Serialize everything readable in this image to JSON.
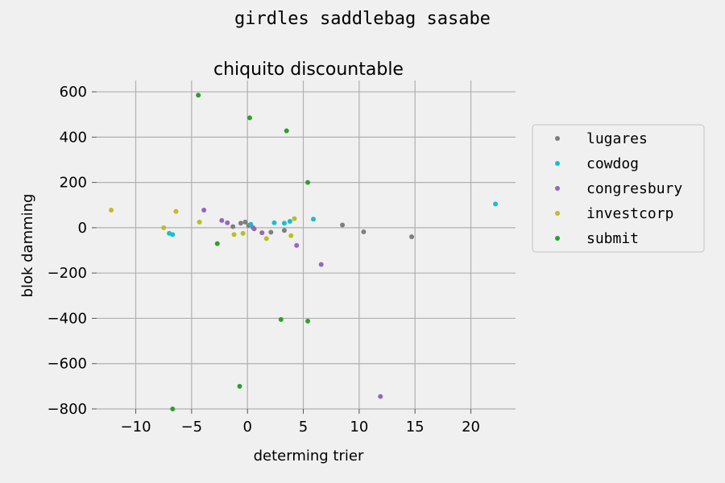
{
  "figure_title": "girdles saddlebag sasabe",
  "chart_data": {
    "type": "scatter",
    "title": "chiquito discountable",
    "xlabel": "determing trier",
    "ylabel": "blok damming",
    "xlim": [
      -13.5,
      24
    ],
    "ylim": [
      -800,
      650
    ],
    "xticks": [
      -10,
      -5,
      0,
      5,
      10,
      15,
      20
    ],
    "yticks": [
      -800,
      -600,
      -400,
      -200,
      0,
      200,
      400,
      600
    ],
    "xtick_labels": [
      "−10",
      "−5",
      "0",
      "5",
      "10",
      "15",
      "20"
    ],
    "ytick_labels": [
      "−800",
      "−600",
      "−400",
      "−200",
      "0",
      "200",
      "400",
      "600"
    ],
    "grid": true,
    "legend_position": "right",
    "series": [
      {
        "name": "lugares",
        "color": "#7f7f7f",
        "points": [
          [
            -1.3,
            5
          ],
          [
            -0.6,
            20
          ],
          [
            -0.2,
            25
          ],
          [
            0.1,
            10
          ],
          [
            0.6,
            -5
          ],
          [
            2.1,
            -20
          ],
          [
            3.3,
            -12
          ],
          [
            8.5,
            12
          ],
          [
            10.4,
            -18
          ],
          [
            14.7,
            -40
          ]
        ]
      },
      {
        "name": "cowdog",
        "color": "#17becf",
        "points": [
          [
            -7.0,
            -25
          ],
          [
            -6.7,
            -30
          ],
          [
            0.3,
            15
          ],
          [
            2.4,
            22
          ],
          [
            3.3,
            20
          ],
          [
            3.8,
            28
          ],
          [
            5.9,
            38
          ],
          [
            22.2,
            105
          ]
        ]
      },
      {
        "name": "congresbury",
        "color": "#9467bd",
        "points": [
          [
            -3.9,
            78
          ],
          [
            -2.3,
            32
          ],
          [
            -1.8,
            22
          ],
          [
            0.5,
            0
          ],
          [
            1.3,
            -22
          ],
          [
            4.4,
            -78
          ],
          [
            6.6,
            -162
          ],
          [
            11.9,
            -745
          ]
        ]
      },
      {
        "name": "investcorp",
        "color": "#bcbd22",
        "points": [
          [
            -12.2,
            78
          ],
          [
            -7.5,
            0
          ],
          [
            -6.4,
            72
          ],
          [
            -4.3,
            25
          ],
          [
            -1.2,
            -30
          ],
          [
            -0.4,
            -25
          ],
          [
            1.7,
            -48
          ],
          [
            3.9,
            -35
          ],
          [
            4.2,
            40
          ]
        ]
      },
      {
        "name": "submit",
        "color": "#2ca02c",
        "points": [
          [
            -4.4,
            585
          ],
          [
            0.2,
            485
          ],
          [
            3.5,
            428
          ],
          [
            5.4,
            200
          ],
          [
            -2.7,
            -70
          ],
          [
            3.0,
            -405
          ],
          [
            5.4,
            -412
          ],
          [
            -0.7,
            -700
          ],
          [
            -6.7,
            -800
          ]
        ]
      }
    ]
  }
}
